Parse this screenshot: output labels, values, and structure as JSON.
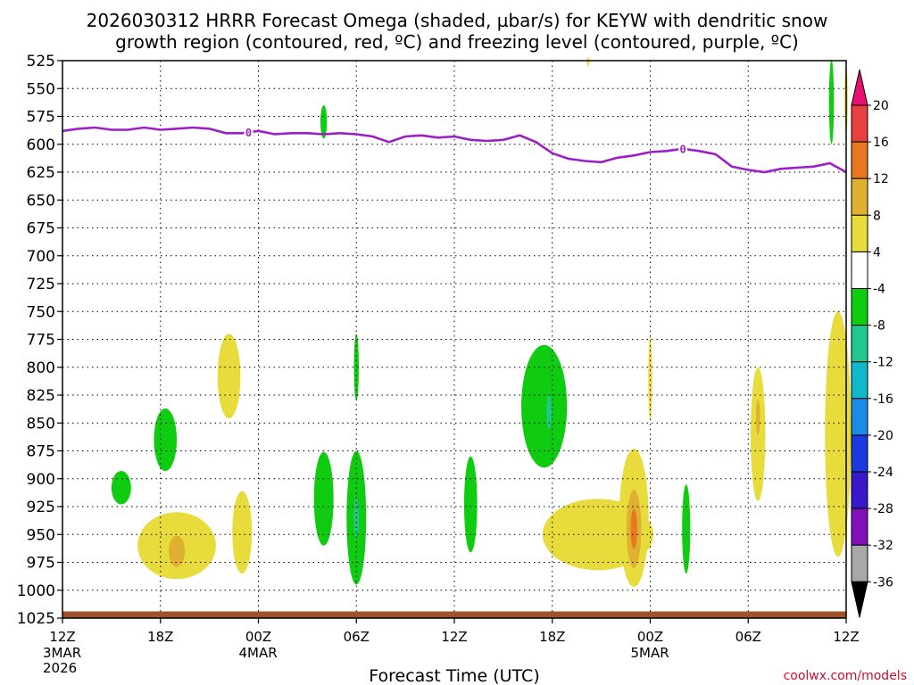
{
  "chart_data": {
    "type": "heatmap",
    "title_lines": [
      "2026030312 HRRR Forecast Omega (shaded, µbar/s) for KEYW with dendritic snow",
      "growth region (contoured, red, ºC) and freezing level (contoured, purple, ºC)"
    ],
    "xlabel": "Forecast Time (UTC)",
    "ylabel": "",
    "credit": "coolwx.com/models",
    "x_hours": {
      "min": 0,
      "max": 48
    },
    "y_pressure": {
      "min": 525,
      "max": 1025
    },
    "x_ticks": [
      {
        "hour": 0,
        "label": "12Z",
        "date": "3MAR",
        "year": "2026"
      },
      {
        "hour": 6,
        "label": "18Z"
      },
      {
        "hour": 12,
        "label": "00Z",
        "date": "4MAR"
      },
      {
        "hour": 18,
        "label": "06Z"
      },
      {
        "hour": 24,
        "label": "12Z"
      },
      {
        "hour": 30,
        "label": "18Z"
      },
      {
        "hour": 36,
        "label": "00Z",
        "date": "5MAR"
      },
      {
        "hour": 42,
        "label": "06Z"
      },
      {
        "hour": 48,
        "label": "12Z"
      }
    ],
    "y_ticks": [
      525,
      550,
      575,
      600,
      625,
      650,
      675,
      700,
      725,
      750,
      775,
      800,
      825,
      850,
      875,
      900,
      925,
      950,
      975,
      1000,
      1025
    ],
    "colorbar": {
      "levels": [
        20,
        16,
        12,
        8,
        4,
        -4,
        -8,
        -12,
        -16,
        -20,
        -24,
        -28,
        -32,
        -36
      ],
      "colors": [
        "#e8106e",
        "#e84040",
        "#e87820",
        "#e0b030",
        "#e8dc3c",
        "#ffffff",
        "#10cc10",
        "#20c890",
        "#10b8c8",
        "#1a8ce8",
        "#1a3ae0",
        "#3818c8",
        "#8010b8",
        "#a8a8a8",
        "#000000"
      ]
    },
    "freezing_level": {
      "label": "0",
      "label_hours": [
        11.4,
        38.0
      ],
      "color": "#9b1fc8",
      "points": [
        [
          0,
          588
        ],
        [
          1,
          586
        ],
        [
          2,
          585
        ],
        [
          3,
          587
        ],
        [
          4,
          587
        ],
        [
          5,
          585
        ],
        [
          6,
          587
        ],
        [
          7,
          586
        ],
        [
          8,
          585
        ],
        [
          9,
          586
        ],
        [
          10,
          590
        ],
        [
          11,
          590
        ],
        [
          12,
          588
        ],
        [
          13,
          591
        ],
        [
          14,
          590
        ],
        [
          15,
          590
        ],
        [
          16,
          591
        ],
        [
          17,
          590
        ],
        [
          18,
          591
        ],
        [
          19,
          593
        ],
        [
          20,
          598
        ],
        [
          21,
          593
        ],
        [
          22,
          592
        ],
        [
          23,
          594
        ],
        [
          24,
          593
        ],
        [
          25,
          596
        ],
        [
          26,
          597
        ],
        [
          27,
          596
        ],
        [
          28,
          592
        ],
        [
          29,
          598
        ],
        [
          30,
          608
        ],
        [
          31,
          613
        ],
        [
          32,
          615
        ],
        [
          33,
          616
        ],
        [
          34,
          612
        ],
        [
          35,
          610
        ],
        [
          36,
          607
        ],
        [
          37,
          606
        ],
        [
          38,
          604
        ],
        [
          39,
          606
        ],
        [
          40,
          609
        ],
        [
          41,
          620
        ],
        [
          42,
          623
        ],
        [
          43,
          625
        ],
        [
          44,
          622
        ],
        [
          45,
          621
        ],
        [
          46,
          620
        ],
        [
          47,
          617
        ],
        [
          48,
          625
        ]
      ]
    },
    "omega_regions": [
      {
        "level": -4,
        "hour": 3.6,
        "p": 908,
        "hw": 0.6,
        "hh": 15
      },
      {
        "level": -4,
        "hour": 6.3,
        "p": 865,
        "hw": 0.7,
        "hh": 28
      },
      {
        "level": 4,
        "hour": 7.0,
        "p": 960,
        "hw": 2.4,
        "hh": 30
      },
      {
        "level": 8,
        "hour": 7.0,
        "p": 965,
        "hw": 0.5,
        "hh": 14
      },
      {
        "level": 4,
        "hour": 10.2,
        "p": 808,
        "hw": 0.7,
        "hh": 38
      },
      {
        "level": 4,
        "hour": 11.0,
        "p": 948,
        "hw": 0.6,
        "hh": 37
      },
      {
        "level": -4,
        "hour": 16.0,
        "p": 580,
        "hw": 0.2,
        "hh": 15
      },
      {
        "level": -4,
        "hour": 16.0,
        "p": 918,
        "hw": 0.6,
        "hh": 42
      },
      {
        "level": -4,
        "hour": 18.0,
        "p": 800,
        "hw": 0.15,
        "hh": 30
      },
      {
        "level": -4,
        "hour": 18.0,
        "p": 935,
        "hw": 0.6,
        "hh": 60
      },
      {
        "level": -8,
        "hour": 18.0,
        "p": 935,
        "hw": 0.15,
        "hh": 18
      },
      {
        "level": -4,
        "hour": 25.0,
        "p": 923,
        "hw": 0.4,
        "hh": 43
      },
      {
        "level": -4,
        "hour": 29.5,
        "p": 835,
        "hw": 1.4,
        "hh": 55
      },
      {
        "level": -8,
        "hour": 29.8,
        "p": 840,
        "hw": 0.15,
        "hh": 16
      },
      {
        "level": 4,
        "hour": 32.8,
        "p": 950,
        "hw": 3.4,
        "hh": 32
      },
      {
        "level": 4,
        "hour": 35.0,
        "p": 935,
        "hw": 0.9,
        "hh": 62
      },
      {
        "level": 8,
        "hour": 35.0,
        "p": 945,
        "hw": 0.45,
        "hh": 35
      },
      {
        "level": 12,
        "hour": 35.0,
        "p": 945,
        "hw": 0.2,
        "hh": 18
      },
      {
        "level": 4,
        "hour": 36.0,
        "p": 810,
        "hw": 0.12,
        "hh": 38
      },
      {
        "level": -4,
        "hour": 38.2,
        "p": 945,
        "hw": 0.25,
        "hh": 40
      },
      {
        "level": 4,
        "hour": 42.6,
        "p": 860,
        "hw": 0.45,
        "hh": 60
      },
      {
        "level": 8,
        "hour": 42.6,
        "p": 845,
        "hw": 0.12,
        "hh": 16
      },
      {
        "level": -4,
        "hour": 47.1,
        "p": 562,
        "hw": 0.15,
        "hh": 38
      },
      {
        "level": 4,
        "hour": 47.5,
        "p": 860,
        "hw": 0.8,
        "hh": 110
      },
      {
        "level": 4,
        "hour": 48.0,
        "p": 560,
        "hw": 0.1,
        "hh": 30
      },
      {
        "level": 4,
        "hour": 32.2,
        "p": 526,
        "hw": 0.05,
        "hh": 4
      }
    ],
    "surface_band": {
      "p_top": 1019,
      "p_bottom": 1025,
      "color": "#a0522d"
    }
  }
}
